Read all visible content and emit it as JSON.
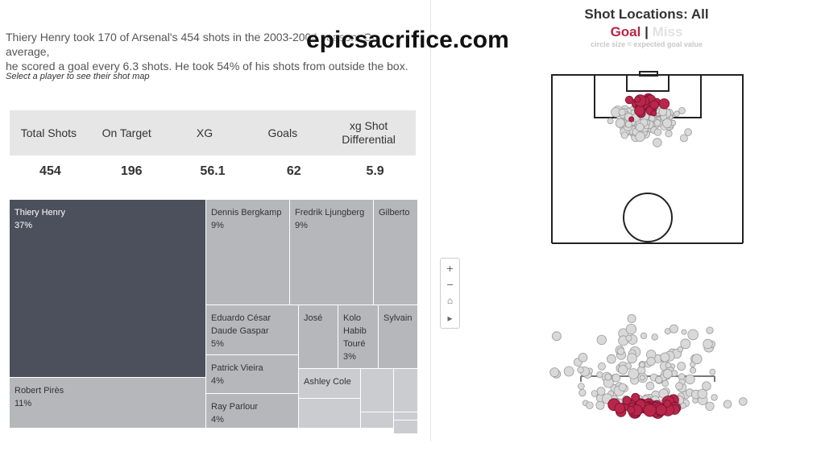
{
  "summary": {
    "line1": "Thiery Henry took 170 of Arsenal's 454 shots in the 2003-2004 season. On average,",
    "line2": "he scored a goal every 6.3 shots. He took 54% of his shots from outside the box."
  },
  "prompt": "Select a player to see their shot map",
  "stats": {
    "headers": [
      "Total Shots",
      "On Target",
      "XG",
      "Goals",
      "xg Shot Differential"
    ],
    "values": [
      "454",
      "196",
      "56.1",
      "62",
      "5.9"
    ]
  },
  "treemap": [
    {
      "name": "Thiery Henry",
      "pct": "37%"
    },
    {
      "name": "Dennis Bergkamp",
      "pct": "9%"
    },
    {
      "name": "Fredrik Ljungberg",
      "pct": "9%"
    },
    {
      "name": "Gilberto",
      "pct": ""
    },
    {
      "name": "Eduardo César Daude Gaspar",
      "pct": "5%"
    },
    {
      "name": "José",
      "pct": ""
    },
    {
      "name": "Kolo Habib Touré",
      "pct": "3%"
    },
    {
      "name": "Sylvain",
      "pct": ""
    },
    {
      "name": "Patrick Vieira",
      "pct": "4%"
    },
    {
      "name": "Ashley Cole",
      "pct": ""
    },
    {
      "name": "Robert Pirès",
      "pct": "11%"
    },
    {
      "name": "Ray Parlour",
      "pct": "4%"
    }
  ],
  "shot_map": {
    "title": "Shot Locations: All",
    "legend_goal": "Goal",
    "legend_sep": "|",
    "legend_miss": "Miss",
    "size_note": "circle size = expected goal value",
    "colors": {
      "goal": "#b8264a",
      "miss": "#d9d9d9",
      "miss_stroke": "#9a9a9a",
      "pitch_line": "#222222"
    }
  },
  "zoom_controls": {
    "zoom_in": "+",
    "zoom_out": "−",
    "home": "⌂",
    "play": "▸"
  },
  "watermark": "epicsacrifice.com"
}
